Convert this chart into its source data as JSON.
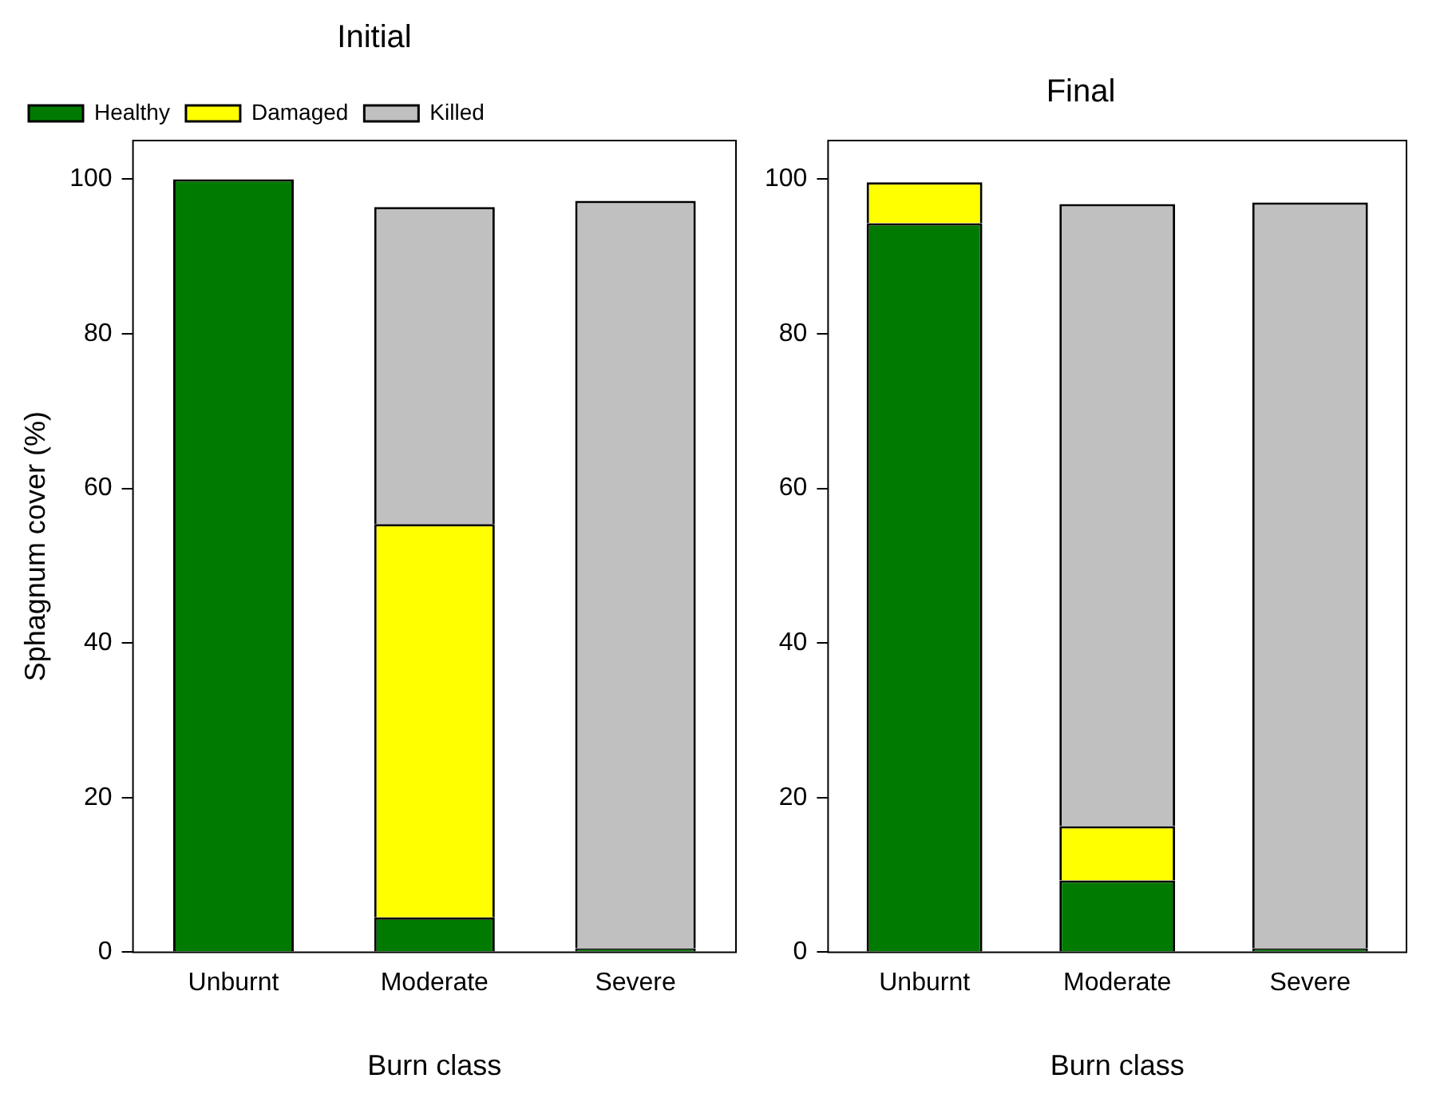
{
  "chart_data": [
    {
      "type": "bar",
      "stacked": true,
      "title": "Initial",
      "xlabel": "Burn class",
      "ylabel": "Sphagnum cover (%)",
      "categories": [
        "Unburnt",
        "Moderate",
        "Severe"
      ],
      "ylim": [
        0,
        105
      ],
      "yticks": [
        0,
        20,
        40,
        60,
        80,
        100
      ],
      "legend": "top left",
      "grid": false,
      "series": [
        {
          "name": "Healthy",
          "color": "#007a00",
          "values": [
            100,
            4.5,
            0.5
          ]
        },
        {
          "name": "Damaged",
          "color": "#ffff00",
          "values": [
            0,
            50.9,
            0
          ]
        },
        {
          "name": "Killed",
          "color": "#c0c0c0",
          "values": [
            0,
            41,
            96.7
          ]
        }
      ]
    },
    {
      "type": "bar",
      "stacked": true,
      "title": "Final",
      "xlabel": "Burn class",
      "categories": [
        "Unburnt",
        "Moderate",
        "Severe"
      ],
      "ylim": [
        0,
        105
      ],
      "yticks": [
        0,
        20,
        40,
        60,
        80,
        100
      ],
      "legend": false,
      "grid": false,
      "series": [
        {
          "color": "#007a00",
          "values": [
            94.3,
            9.3,
            0.5
          ]
        },
        {
          "color": "#ffff00",
          "values": [
            5.3,
            7,
            0
          ]
        },
        {
          "color": "#c0c0c0",
          "values": [
            null,
            80.5,
            96.5
          ]
        }
      ]
    }
  ]
}
